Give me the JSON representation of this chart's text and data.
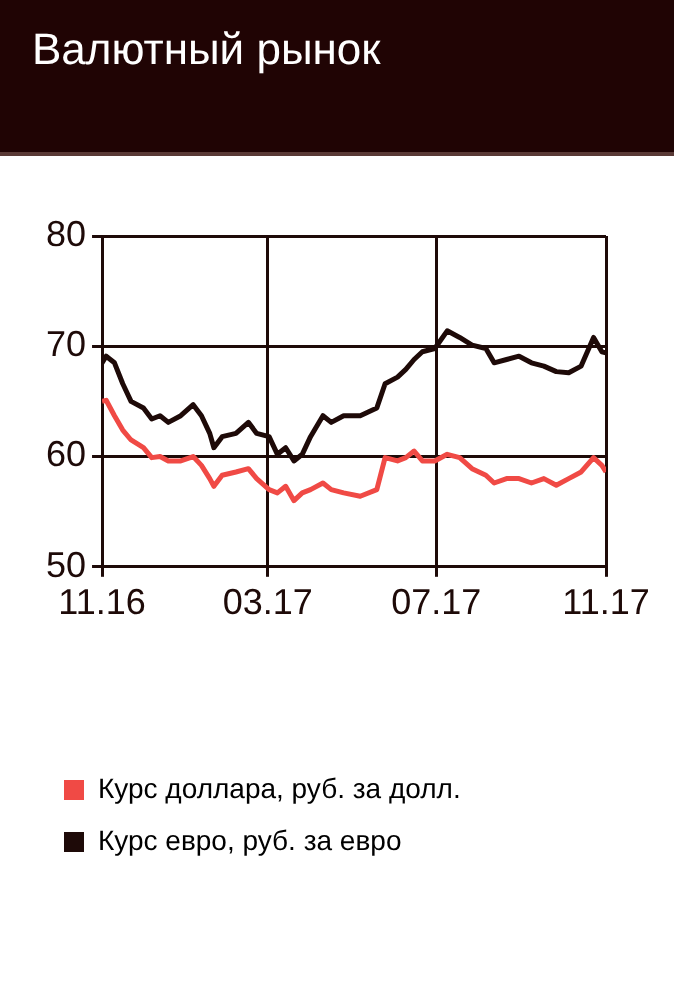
{
  "chart_data": {
    "type": "line",
    "title": "Валютный рынок",
    "x": [
      "2016-11-01",
      "2016-11-04",
      "2016-11-10",
      "2016-11-16",
      "2016-11-22",
      "2016-12-01",
      "2016-12-07",
      "2016-12-13",
      "2016-12-19",
      "2016-12-28",
      "2017-01-06",
      "2017-01-12",
      "2017-01-18",
      "2017-01-21",
      "2017-01-27",
      "2017-02-06",
      "2017-02-15",
      "2017-02-21",
      "2017-03-02",
      "2017-03-08",
      "2017-03-14",
      "2017-03-20",
      "2017-03-26",
      "2017-04-01",
      "2017-04-10",
      "2017-04-16",
      "2017-04-25",
      "2017-05-07",
      "2017-05-19",
      "2017-05-25",
      "2017-06-03",
      "2017-06-09",
      "2017-06-15",
      "2017-06-21",
      "2017-06-30",
      "2017-07-09",
      "2017-07-18",
      "2017-07-27",
      "2017-08-06",
      "2017-08-12",
      "2017-08-21",
      "2017-08-30",
      "2017-09-08",
      "2017-09-17",
      "2017-09-26",
      "2017-10-05",
      "2017-10-14",
      "2017-10-23",
      "2017-10-29",
      "2017-11-01"
    ],
    "series": [
      {
        "name": "Курс доллара, руб. за долл.",
        "color": "#f04a45",
        "values": [
          65,
          65.1,
          63.7,
          62.4,
          61.5,
          60.8,
          59.9,
          60,
          59.6,
          59.6,
          60,
          59.2,
          58,
          57.3,
          58.3,
          58.6,
          58.9,
          58,
          57,
          56.7,
          57.3,
          56,
          56.7,
          57,
          57.6,
          57,
          56.7,
          56.4,
          57,
          59.9,
          59.6,
          59.9,
          60.5,
          59.6,
          59.6,
          60.2,
          59.9,
          58.9,
          58.3,
          57.6,
          58,
          58,
          57.6,
          58,
          57.4,
          58,
          58.6,
          59.9,
          59.2,
          58.6
        ]
      },
      {
        "name": "Курс евро, руб. за евро",
        "color": "#1e0a08",
        "values": [
          68.5,
          69.1,
          68.5,
          66.6,
          65,
          64.4,
          63.4,
          63.7,
          63.1,
          63.7,
          64.7,
          63.7,
          62.1,
          60.8,
          61.8,
          62.1,
          63.1,
          62.1,
          61.8,
          60.2,
          60.8,
          59.6,
          60.2,
          61.8,
          63.7,
          63.1,
          63.7,
          63.7,
          64.4,
          66.6,
          67.2,
          67.9,
          68.8,
          69.5,
          69.8,
          71.4,
          70.8,
          70.1,
          69.8,
          68.5,
          68.8,
          69.1,
          68.5,
          68.2,
          67.7,
          67.6,
          68.2,
          70.8,
          69.5,
          69.4
        ]
      }
    ],
    "xlim": [
      "2016-11-01",
      "2017-11-01"
    ],
    "xticks": [
      {
        "value": "2016-11-01",
        "label": "11.16"
      },
      {
        "value": "2017-03-01",
        "label": "03.17"
      },
      {
        "value": "2017-07-01",
        "label": "07.17"
      },
      {
        "value": "2017-11-01",
        "label": "11.17"
      }
    ],
    "ylim": [
      50,
      80
    ],
    "yticks": [
      50,
      60,
      70,
      80
    ],
    "grid": true,
    "legend": "bottom left",
    "marker": "none",
    "line_style": "solid"
  }
}
